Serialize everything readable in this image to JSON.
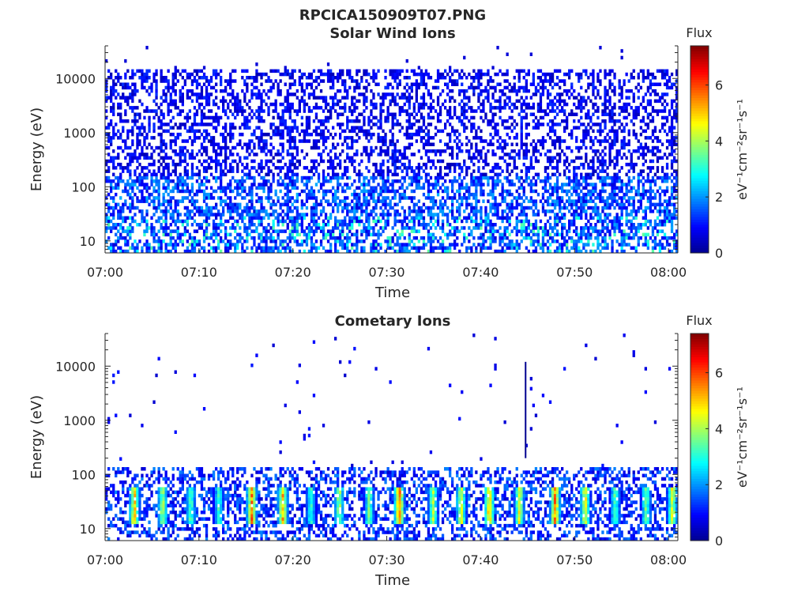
{
  "figure": {
    "title": "RPCICA150909T07.PNG"
  },
  "colormap": [
    "#00008f",
    "#0000ff",
    "#0080ff",
    "#00ffff",
    "#80ff80",
    "#ffff00",
    "#ff8000",
    "#ff0000",
    "#800000"
  ],
  "chart_data": [
    {
      "type": "heatmap",
      "title": "Solar Wind Ions",
      "xlabel": "Time",
      "ylabel": "Energy (eV)",
      "x_ticks": [
        "07:00",
        "07:10",
        "07:20",
        "07:30",
        "07:40",
        "07:50",
        "08:00"
      ],
      "x_range": [
        "07:00",
        "08:01"
      ],
      "y_scale": "log",
      "y_ticks": [
        "10",
        "100",
        "1000",
        "10000"
      ],
      "y_range": [
        6,
        40000
      ],
      "colorbar": {
        "title": "Flux",
        "label": "eV⁻¹cm⁻²sr⁻¹s⁻¹",
        "ticks": [
          "0",
          "2",
          "4",
          "6"
        ],
        "range": [
          0,
          7.4
        ]
      },
      "description_of_data": {
        "sparse_upper_cutoff_eV": 14000,
        "dense_low_energy_band_eV": [
          6,
          150
        ],
        "typical_flux": "0-2, occasional 3 near 10-30 eV"
      }
    },
    {
      "type": "heatmap",
      "title": "Cometary Ions",
      "xlabel": "Time",
      "ylabel": "Energy (eV)",
      "x_ticks": [
        "07:00",
        "07:10",
        "07:20",
        "07:30",
        "07:40",
        "07:50",
        "08:00"
      ],
      "x_range": [
        "07:00",
        "08:01"
      ],
      "y_scale": "log",
      "y_ticks": [
        "10",
        "100",
        "1000",
        "10000"
      ],
      "y_range": [
        6,
        40000
      ],
      "colorbar": {
        "title": "Flux",
        "label": "eV⁻¹cm⁻²sr⁻¹s⁻¹",
        "ticks": [
          "0",
          "2",
          "4",
          "6"
        ],
        "range": [
          0,
          7.4
        ]
      },
      "bursts": [
        {
          "time_min": 3.0,
          "peak_flux": 5.5
        },
        {
          "time_min": 6.0,
          "peak_flux": 4.5
        },
        {
          "time_min": 9.0,
          "peak_flux": 3.8
        },
        {
          "time_min": 12.0,
          "peak_flux": 3.5
        },
        {
          "time_min": 15.5,
          "peak_flux": 6.0
        },
        {
          "time_min": 18.8,
          "peak_flux": 5.5
        },
        {
          "time_min": 21.8,
          "peak_flux": 3.5
        },
        {
          "time_min": 24.8,
          "peak_flux": 4.5
        },
        {
          "time_min": 28.0,
          "peak_flux": 4.0
        },
        {
          "time_min": 31.2,
          "peak_flux": 6.2
        },
        {
          "time_min": 34.8,
          "peak_flux": 4.5
        },
        {
          "time_min": 37.8,
          "peak_flux": 5.0
        },
        {
          "time_min": 40.8,
          "peak_flux": 5.8
        },
        {
          "time_min": 44.0,
          "peak_flux": 5.0
        },
        {
          "time_min": 47.8,
          "peak_flux": 6.0
        },
        {
          "time_min": 51.0,
          "peak_flux": 5.2
        },
        {
          "time_min": 54.2,
          "peak_flux": 3.8
        },
        {
          "time_min": 57.5,
          "peak_flux": 4.0
        },
        {
          "time_min": 60.3,
          "peak_flux": 5.0
        }
      ],
      "spike_time_min": 44.7,
      "description_of_data": {
        "dense_band_eV": [
          6,
          130
        ],
        "sparse_high_energy_dots": true
      }
    }
  ]
}
